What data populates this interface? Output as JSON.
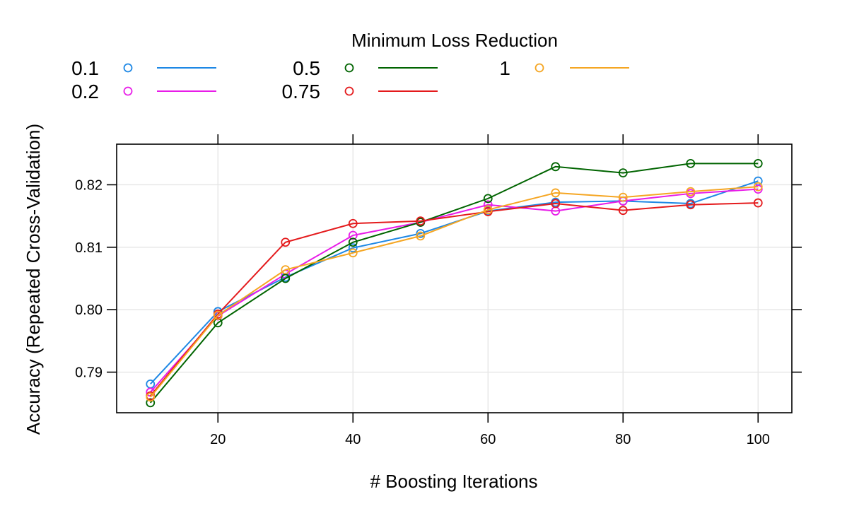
{
  "chart_data": {
    "type": "line",
    "xlabel": "# Boosting Iterations",
    "ylabel": "Accuracy (Repeated Cross-Validation)",
    "legend_title": "Minimum Loss Reduction",
    "legend_position": "top",
    "grid": true,
    "xlim": [
      5,
      105
    ],
    "ylim": [
      0.7835,
      0.8265
    ],
    "x_ticks": [
      20,
      40,
      60,
      80,
      100
    ],
    "y_ticks": [
      0.79,
      0.8,
      0.81,
      0.82
    ],
    "x_tick_labels": [
      "20",
      "40",
      "60",
      "80",
      "100"
    ],
    "y_tick_labels": [
      "0.79",
      "0.80",
      "0.81",
      "0.82"
    ],
    "x": [
      10,
      20,
      30,
      40,
      50,
      60,
      70,
      80,
      90,
      100
    ],
    "series": [
      {
        "name": "0.1",
        "color": "#1E88E5",
        "values": [
          0.7881,
          0.7997,
          0.8052,
          0.8099,
          0.8122,
          0.8158,
          0.8172,
          0.8174,
          0.817,
          0.8206
        ]
      },
      {
        "name": "0.2",
        "color": "#E81CE8",
        "values": [
          0.7868,
          0.799,
          0.8057,
          0.8119,
          0.814,
          0.8168,
          0.8158,
          0.8174,
          0.8186,
          0.8193
        ]
      },
      {
        "name": "0.5",
        "color": "#006400",
        "values": [
          0.7851,
          0.7979,
          0.805,
          0.8108,
          0.814,
          0.8178,
          0.8229,
          0.8219,
          0.8234,
          0.8234
        ]
      },
      {
        "name": "0.75",
        "color": "#E41A1C",
        "values": [
          0.7862,
          0.7993,
          0.8108,
          0.8138,
          0.8142,
          0.8157,
          0.817,
          0.8159,
          0.8168,
          0.8171
        ]
      },
      {
        "name": "1",
        "color": "#F5A623",
        "values": [
          0.786,
          0.7991,
          0.8064,
          0.8091,
          0.8118,
          0.816,
          0.8187,
          0.818,
          0.8189,
          0.8197
        ]
      }
    ]
  }
}
